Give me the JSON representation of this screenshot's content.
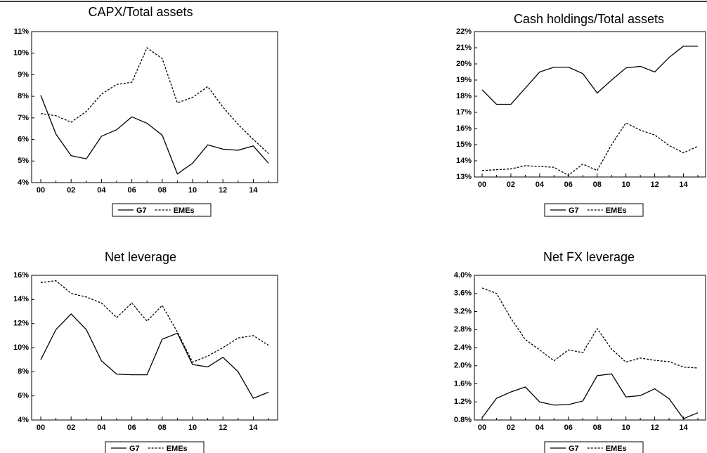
{
  "chart_data": [
    {
      "type": "line",
      "title": "CAPX/Total assets",
      "categories": [
        "00",
        null,
        "02",
        null,
        "04",
        null,
        "06",
        null,
        "08",
        null,
        "10",
        null,
        "12",
        null,
        "14",
        null
      ],
      "ylim": [
        4,
        11
      ],
      "yticks": [
        {
          "value": 4,
          "label": "4%"
        },
        {
          "value": 5,
          "label": "5%"
        },
        {
          "value": 6,
          "label": "6%"
        },
        {
          "value": 7,
          "label": "7%"
        },
        {
          "value": 8,
          "label": "8%"
        },
        {
          "value": 9,
          "label": "9%"
        },
        {
          "value": 10,
          "label": "10%"
        },
        {
          "value": 11,
          "label": "11%"
        }
      ],
      "series": [
        {
          "name": "G7",
          "color": "#000000",
          "dash": "solid",
          "values": [
            8.05,
            6.25,
            5.25,
            5.1,
            6.15,
            6.45,
            7.05,
            6.75,
            6.2,
            4.4,
            4.9,
            5.75,
            5.55,
            5.5,
            5.7,
            4.9
          ]
        },
        {
          "name": "EMEs",
          "color": "#000000",
          "dash": "dashed",
          "values": [
            7.2,
            7.1,
            6.8,
            7.3,
            8.1,
            8.55,
            8.65,
            10.25,
            9.75,
            7.7,
            7.95,
            8.45,
            7.5,
            6.7,
            6.0,
            5.35
          ]
        }
      ]
    },
    {
      "type": "line",
      "title": "Cash holdings/Total assets",
      "categories": [
        "00",
        null,
        "02",
        null,
        "04",
        null,
        "06",
        null,
        "08",
        null,
        "10",
        null,
        "12",
        null,
        "14",
        null
      ],
      "ylim": [
        13,
        22
      ],
      "yticks": [
        {
          "value": 13,
          "label": "13%"
        },
        {
          "value": 14,
          "label": "14%"
        },
        {
          "value": 15,
          "label": "15%"
        },
        {
          "value": 16,
          "label": "16%"
        },
        {
          "value": 17,
          "label": "17%"
        },
        {
          "value": 18,
          "label": "18%"
        },
        {
          "value": 19,
          "label": "19%"
        },
        {
          "value": 20,
          "label": "20%"
        },
        {
          "value": 21,
          "label": "21%"
        },
        {
          "value": 22,
          "label": "22%"
        }
      ],
      "series": [
        {
          "name": "G7",
          "color": "#000000",
          "dash": "solid",
          "values": [
            18.4,
            17.5,
            17.5,
            18.5,
            19.5,
            19.8,
            19.8,
            19.4,
            18.2,
            19.0,
            19.75,
            19.85,
            19.5,
            20.4,
            21.1,
            21.1
          ]
        },
        {
          "name": "EMEs",
          "color": "#000000",
          "dash": "dashed",
          "values": [
            13.4,
            13.45,
            13.5,
            13.7,
            13.65,
            13.6,
            13.1,
            13.8,
            13.4,
            15.0,
            16.35,
            15.9,
            15.6,
            14.95,
            14.5,
            14.9
          ]
        }
      ]
    },
    {
      "type": "line",
      "title": "Net leverage",
      "categories": [
        "00",
        null,
        "02",
        null,
        "04",
        null,
        "06",
        null,
        "08",
        null,
        "10",
        null,
        "12",
        null,
        "14",
        null
      ],
      "ylim": [
        4,
        16
      ],
      "yticks": [
        {
          "value": 4,
          "label": "4%"
        },
        {
          "value": 6,
          "label": "6%"
        },
        {
          "value": 8,
          "label": "8%"
        },
        {
          "value": 10,
          "label": "10%"
        },
        {
          "value": 12,
          "label": "12%"
        },
        {
          "value": 14,
          "label": "14%"
        },
        {
          "value": 16,
          "label": "16%"
        }
      ],
      "series": [
        {
          "name": "G7",
          "color": "#000000",
          "dash": "solid",
          "values": [
            9.0,
            11.5,
            12.8,
            11.5,
            8.9,
            7.8,
            7.75,
            7.75,
            10.7,
            11.2,
            8.6,
            8.4,
            9.2,
            8.0,
            5.8,
            6.3
          ]
        },
        {
          "name": "EMEs",
          "color": "#000000",
          "dash": "dashed",
          "values": [
            15.4,
            15.55,
            14.5,
            14.2,
            13.7,
            12.5,
            13.7,
            12.2,
            13.5,
            11.3,
            8.8,
            9.3,
            10.0,
            10.8,
            11.0,
            10.2
          ]
        }
      ]
    },
    {
      "type": "line",
      "title": "Net FX leverage",
      "categories": [
        "00",
        null,
        "02",
        null,
        "04",
        null,
        "06",
        null,
        "08",
        null,
        "10",
        null,
        "12",
        null,
        "14",
        null
      ],
      "ylim": [
        0.8,
        4.0
      ],
      "yticks": [
        {
          "value": 0.8,
          "label": "0.8%"
        },
        {
          "value": 1.2,
          "label": "1.2%"
        },
        {
          "value": 1.6,
          "label": "1.6%"
        },
        {
          "value": 2.0,
          "label": "2.0%"
        },
        {
          "value": 2.4,
          "label": "2.4%"
        },
        {
          "value": 2.8,
          "label": "2.8%"
        },
        {
          "value": 3.2,
          "label": "3.2%"
        },
        {
          "value": 3.6,
          "label": "3.6%"
        },
        {
          "value": 4.0,
          "label": "4.0%"
        }
      ],
      "series": [
        {
          "name": "G7",
          "color": "#000000",
          "dash": "solid",
          "values": [
            0.85,
            1.28,
            1.42,
            1.53,
            1.2,
            1.13,
            1.14,
            1.22,
            1.78,
            1.82,
            1.31,
            1.34,
            1.49,
            1.27,
            0.83,
            0.96
          ]
        },
        {
          "name": "EMEs",
          "color": "#000000",
          "dash": "dashed",
          "values": [
            3.72,
            3.6,
            3.05,
            2.58,
            2.35,
            2.11,
            2.35,
            2.29,
            2.82,
            2.37,
            2.08,
            2.17,
            2.12,
            2.09,
            1.97,
            1.95
          ]
        }
      ]
    }
  ]
}
